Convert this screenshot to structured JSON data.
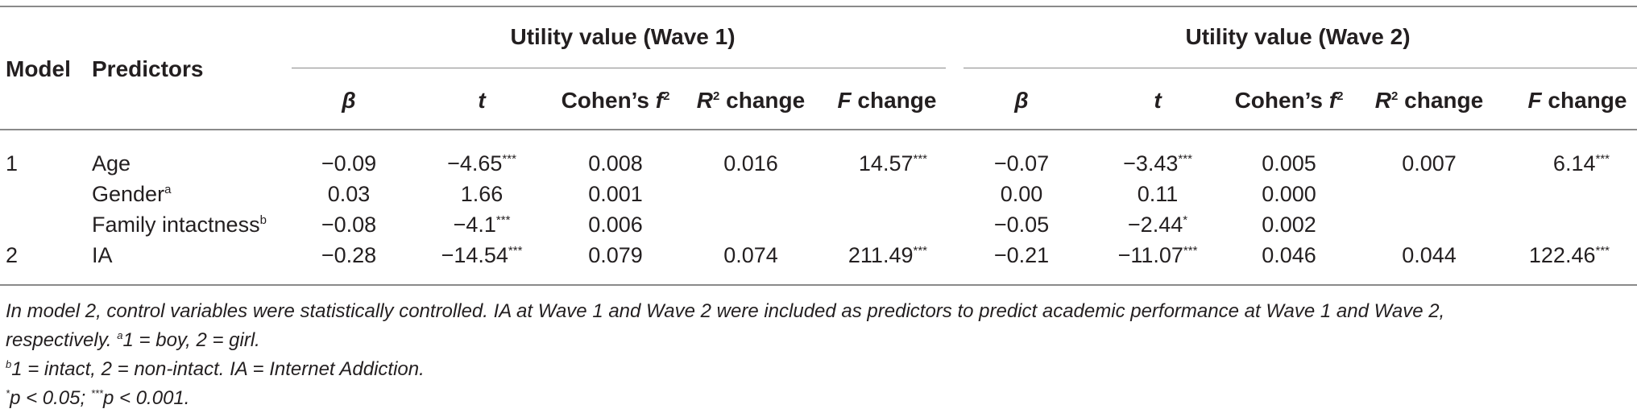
{
  "table": {
    "col_model": "Model",
    "col_predictors": "Predictors",
    "group_wave1": "Utility value (Wave 1)",
    "group_wave2": "Utility value (Wave 2)",
    "subheaders": {
      "beta": "β",
      "t": "t",
      "cohens_prefix": "Cohen’s ",
      "cohens_f": "f",
      "cohens_sup": "2",
      "r2_r": "R",
      "r2_sup": "2",
      "r2_suffix": " change",
      "f_F": "F",
      "f_suffix": " change"
    },
    "rows": [
      {
        "model": "1",
        "predictor": "Age",
        "predictor_sup": "",
        "w1": {
          "beta": "−0.09",
          "t": "−4.65",
          "t_sig": "***",
          "cohen": "0.008",
          "r2": "0.016",
          "f": "14.57",
          "f_sig": "***"
        },
        "w2": {
          "beta": "−0.07",
          "t": "−3.43",
          "t_sig": "***",
          "cohen": "0.005",
          "r2": "0.007",
          "f": "6.14",
          "f_sig": "***"
        }
      },
      {
        "model": "",
        "predictor": "Gender",
        "predictor_sup": "a",
        "w1": {
          "beta": "0.03",
          "t": "1.66",
          "t_sig": "",
          "cohen": "0.001",
          "r2": "",
          "f": "",
          "f_sig": ""
        },
        "w2": {
          "beta": "0.00",
          "t": "0.11",
          "t_sig": "",
          "cohen": "0.000",
          "r2": "",
          "f": "",
          "f_sig": ""
        }
      },
      {
        "model": "",
        "predictor": "Family intactness",
        "predictor_sup": "b",
        "w1": {
          "beta": "−0.08",
          "t": "−4.1",
          "t_sig": "***",
          "cohen": "0.006",
          "r2": "",
          "f": "",
          "f_sig": ""
        },
        "w2": {
          "beta": "−0.05",
          "t": "−2.44",
          "t_sig": "*",
          "cohen": "0.002",
          "r2": "",
          "f": "",
          "f_sig": ""
        }
      },
      {
        "model": "2",
        "predictor": "IA",
        "predictor_sup": "",
        "w1": {
          "beta": "−0.28",
          "t": "−14.54",
          "t_sig": "***",
          "cohen": "0.079",
          "r2": "0.074",
          "f": "211.49",
          "f_sig": "***"
        },
        "w2": {
          "beta": "−0.21",
          "t": "−11.07",
          "t_sig": "***",
          "cohen": "0.046",
          "r2": "0.044",
          "f": "122.46",
          "f_sig": "***"
        }
      }
    ]
  },
  "footnotes": {
    "note_line1": "In model 2, control variables were statistically controlled. IA at Wave 1 and Wave 2 were included as predictors to predict academic performance at Wave 1 and Wave 2,",
    "note_line2": "respectively. ",
    "a_mark": "a",
    "a_text": "1 = boy, 2 = girl.",
    "b_mark": "b",
    "b_text": "1 = intact, 2 = non-intact. IA = Internet Addiction.",
    "sig_mark1": "*",
    "sig_text1": "p < 0.05; ",
    "sig_mark2": "***",
    "sig_text2": "p < 0.001."
  }
}
